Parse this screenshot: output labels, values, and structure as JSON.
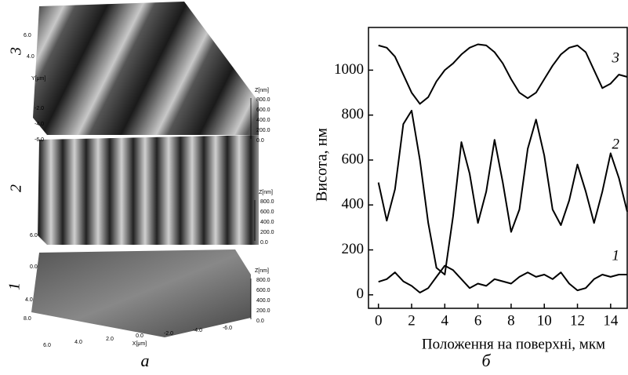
{
  "chart_data": {
    "type": "line",
    "y_label": "Висота, нм",
    "x_label": "Положення на поверхні, мкм",
    "caption": "б",
    "x": [
      0,
      0.5,
      1,
      1.5,
      2,
      2.5,
      3,
      3.5,
      4,
      4.5,
      5,
      5.5,
      6,
      6.5,
      7,
      7.5,
      8,
      8.5,
      9,
      9.5,
      10,
      10.5,
      11,
      11.5,
      12,
      12.5,
      13,
      13.5,
      14,
      14.5,
      15
    ],
    "series": [
      {
        "name": "1",
        "color": "#000000",
        "values": [
          58,
          70,
          100,
          60,
          40,
          10,
          30,
          80,
          130,
          110,
          70,
          30,
          50,
          40,
          70,
          60,
          50,
          80,
          100,
          80,
          90,
          70,
          100,
          50,
          20,
          30,
          70,
          90,
          80,
          90,
          90
        ]
      },
      {
        "name": "2",
        "color": "#000000",
        "values": [
          500,
          330,
          470,
          760,
          820,
          600,
          320,
          120,
          90,
          350,
          680,
          540,
          320,
          460,
          690,
          500,
          280,
          380,
          650,
          780,
          620,
          380,
          310,
          420,
          580,
          460,
          320,
          460,
          630,
          520,
          370
        ]
      },
      {
        "name": "3",
        "color": "#000000",
        "values": [
          1110,
          1100,
          1060,
          980,
          900,
          850,
          880,
          950,
          1000,
          1030,
          1070,
          1100,
          1115,
          1110,
          1080,
          1030,
          960,
          900,
          875,
          900,
          960,
          1020,
          1070,
          1100,
          1110,
          1080,
          1000,
          920,
          940,
          980,
          970
        ]
      }
    ],
    "xlim": [
      -0.6,
      15
    ],
    "xticks": [
      0,
      2,
      4,
      6,
      8,
      10,
      12,
      14
    ],
    "ylim": [
      -60,
      1190
    ],
    "yticks": [
      0,
      200,
      400,
      600,
      800,
      1000
    ]
  },
  "afm": {
    "caption": "а",
    "images": [
      {
        "label": "3",
        "y_label": "Y[μm]",
        "y_ticks": [
          "6.0",
          "4.0",
          "-2.0",
          "-4.0",
          "-6.0"
        ],
        "z_label": "Z[nm]",
        "z_ticks": [
          "800.0",
          "600.0",
          "400.0",
          "200.0",
          "0.0"
        ]
      },
      {
        "label": "2",
        "y_ticks": [
          "6.0"
        ],
        "z_label": "Z[nm]",
        "z_ticks": [
          "800.0",
          "600.0",
          "400.0",
          "200.0",
          "0.0"
        ]
      },
      {
        "label": "1",
        "y_ticks": [
          "0.0",
          "4.0",
          "8.0"
        ],
        "z_label": "Z[nm]",
        "z_ticks": [
          "800.0",
          "600.0",
          "400.0",
          "200.0",
          "0.0"
        ],
        "x_label": "X[μm]",
        "x_ticks": [
          "6.0",
          "4.0",
          "2.0",
          "0.0",
          "-2.0",
          "-4.0",
          "-6.0"
        ]
      }
    ]
  }
}
